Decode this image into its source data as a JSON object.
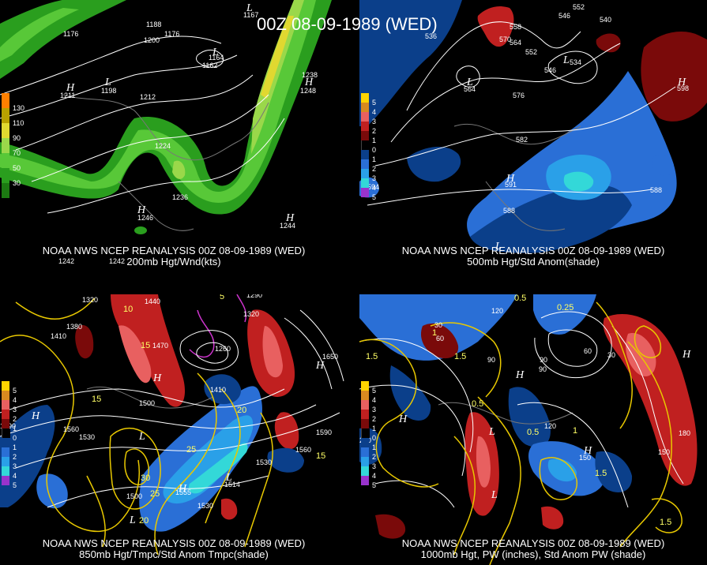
{
  "title": "00Z 08-09-1989 (WED)",
  "panels": [
    {
      "id": "200mb",
      "caption_line1": "NOAA NWS NCEP REANALYSIS 00Z 08-09-1989 (WED)",
      "caption_line2": "200mb Hgt/Wnd(kts)",
      "colorbar": {
        "labels": [
          "130",
          "110",
          "90",
          "70",
          "50",
          "30"
        ],
        "colors": [
          "#ff7f00",
          "#b8a000",
          "#e0d830",
          "#9ad84a",
          "#58c838",
          "#2a9e1e",
          "#1c7a12"
        ]
      },
      "contour_labels": [
        "1176",
        "1188",
        "1176",
        "1200",
        "1164",
        "1162",
        "1212",
        "1224",
        "1236",
        "1238",
        "1248",
        "1244",
        "1246",
        "1242",
        "1242",
        "1211",
        "1198",
        "1167"
      ]
    },
    {
      "id": "500mb",
      "caption_line1": "NOAA NWS NCEP REANALYSIS 00Z 08-09-1989 (WED)",
      "caption_line2": "500mb Hgt/Std Anom(shade)",
      "colorbar": {
        "labels": [
          "5",
          "4",
          "3",
          "2",
          "1",
          "0",
          "1",
          "2",
          "3",
          "4",
          "5"
        ],
        "colors": [
          "#ffd400",
          "#d88a20",
          "#e86060",
          "#c02020",
          "#7a0a0a",
          "#000000",
          "#0b3f8a",
          "#2a6fd6",
          "#2aa0e8",
          "#33d8d8",
          "#9933cc"
        ]
      },
      "contour_labels": [
        "546",
        "552",
        "540",
        "536",
        "570",
        "564",
        "552",
        "534",
        "546",
        "558",
        "576",
        "582",
        "591",
        "588",
        "588",
        "598",
        "564",
        "594"
      ]
    },
    {
      "id": "850mb",
      "caption_line1": "NOAA NWS NCEP REANALYSIS 00Z 08-09-1989 (WED)",
      "caption_line2": "850mb Hgt/Tmpc/Std Anom Tmpc(shade)",
      "colorbar": {
        "labels": [
          "5",
          "4",
          "3",
          "2",
          "1",
          "0",
          "1",
          "2",
          "3",
          "4",
          "5"
        ],
        "colors": [
          "#ffd400",
          "#d88a20",
          "#e86060",
          "#c02020",
          "#7a0a0a",
          "#000000",
          "#0b3f8a",
          "#2a6fd6",
          "#2aa0e8",
          "#33d8d8",
          "#9933cc"
        ]
      },
      "contour_labels": [
        "1320",
        "1440",
        "1260",
        "1380",
        "1410",
        "1470",
        "1320",
        "1290",
        "1410",
        "1500",
        "1590",
        "1560",
        "1530",
        "1500",
        "1530",
        "1560",
        "1590",
        "1530",
        "1650",
        "1555",
        "1514"
      ],
      "temp_labels": [
        "10",
        "15",
        "20",
        "25",
        "30",
        "15",
        "5",
        "15",
        "20",
        "25"
      ]
    },
    {
      "id": "1000mb",
      "caption_line1": "NOAA NWS NCEP REANALYSIS 00Z 08-09-1989 (WED)",
      "caption_line2": "1000mb Hgt, PW (inches), Std Anom PW (shade)",
      "colorbar": {
        "labels": [
          "5",
          "4",
          "3",
          "2",
          "1",
          "0",
          "1",
          "2",
          "3",
          "4",
          "5"
        ],
        "colors": [
          "#ffd400",
          "#d88a20",
          "#e86060",
          "#c02020",
          "#7a0a0a",
          "#000000",
          "#0b3f8a",
          "#2a6fd6",
          "#2aa0e8",
          "#33d8d8",
          "#9933cc"
        ]
      },
      "contour_labels": [
        "120",
        "60",
        "90",
        "60",
        "30",
        "90",
        "210",
        "120",
        "150",
        "180",
        "150",
        "90",
        "30"
      ],
      "pw_labels": [
        "0.5",
        "1",
        "1.5",
        "0.25",
        "0.5",
        "1.5",
        "1",
        "0.5",
        "1.5",
        "1.5"
      ]
    }
  ],
  "hl_markers": [
    "H",
    "L"
  ]
}
